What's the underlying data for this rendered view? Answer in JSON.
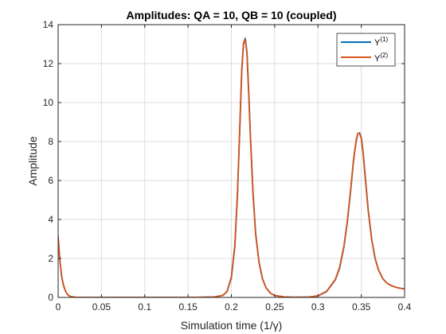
{
  "chart_data": {
    "type": "line",
    "title": "Amplitudes: QA = 10, QB = 10 (coupled)",
    "xlabel": "Simulation time (1/γ)",
    "ylabel": "Amplitude",
    "xlim": [
      0,
      0.4
    ],
    "ylim": [
      0,
      14
    ],
    "xticks": [
      0,
      0.05,
      0.1,
      0.15,
      0.2,
      0.25,
      0.3,
      0.35,
      0.4
    ],
    "xtick_labels": [
      "0",
      "0.05",
      "0.1",
      "0.15",
      "0.2",
      "0.25",
      "0.3",
      "0.35",
      "0.4"
    ],
    "yticks": [
      0,
      2,
      4,
      6,
      8,
      10,
      12,
      14
    ],
    "ytick_labels": [
      "0",
      "2",
      "4",
      "6",
      "8",
      "10",
      "12",
      "14"
    ],
    "grid": true,
    "legend_position": "top-right",
    "series": [
      {
        "name": "Y(1)",
        "legend_base": "Y",
        "legend_sup": "(1)",
        "color": "#0072BD",
        "x": [
          0,
          0.002,
          0.004,
          0.006,
          0.008,
          0.01,
          0.012,
          0.015,
          0.02,
          0.03,
          0.05,
          0.1,
          0.15,
          0.18,
          0.19,
          0.195,
          0.2,
          0.204,
          0.207,
          0.21,
          0.212,
          0.214,
          0.216,
          0.218,
          0.22,
          0.222,
          0.225,
          0.228,
          0.232,
          0.236,
          0.24,
          0.245,
          0.25,
          0.26,
          0.27,
          0.28,
          0.29,
          0.3,
          0.31,
          0.32,
          0.325,
          0.33,
          0.334,
          0.338,
          0.341,
          0.344,
          0.346,
          0.348,
          0.35,
          0.352,
          0.355,
          0.358,
          0.362,
          0.366,
          0.37,
          0.375,
          0.38,
          0.385,
          0.39,
          0.395,
          0.4
        ],
        "y": [
          3.1,
          1.9,
          1.1,
          0.65,
          0.38,
          0.2,
          0.1,
          0.04,
          0.01,
          0.0,
          0.0,
          0.0,
          0.0,
          0.02,
          0.1,
          0.3,
          1.0,
          2.6,
          5.2,
          9.0,
          11.6,
          13.0,
          13.3,
          12.6,
          10.6,
          8.3,
          5.4,
          3.3,
          1.8,
          0.95,
          0.5,
          0.22,
          0.1,
          0.03,
          0.01,
          0.01,
          0.02,
          0.08,
          0.3,
          0.9,
          1.5,
          2.6,
          3.9,
          5.6,
          7.0,
          8.0,
          8.4,
          8.45,
          8.2,
          7.5,
          6.0,
          4.5,
          3.0,
          2.0,
          1.4,
          0.95,
          0.72,
          0.6,
          0.52,
          0.47,
          0.44
        ]
      },
      {
        "name": "Y(2)",
        "legend_base": "Y",
        "legend_sup": "(2)",
        "color": "#D95319",
        "x": [
          0,
          0.002,
          0.004,
          0.006,
          0.008,
          0.01,
          0.012,
          0.015,
          0.02,
          0.03,
          0.05,
          0.1,
          0.15,
          0.18,
          0.19,
          0.195,
          0.2,
          0.204,
          0.207,
          0.21,
          0.212,
          0.214,
          0.216,
          0.218,
          0.22,
          0.222,
          0.225,
          0.228,
          0.232,
          0.236,
          0.24,
          0.245,
          0.25,
          0.26,
          0.27,
          0.28,
          0.29,
          0.3,
          0.31,
          0.32,
          0.325,
          0.33,
          0.334,
          0.338,
          0.341,
          0.344,
          0.346,
          0.348,
          0.35,
          0.352,
          0.355,
          0.358,
          0.362,
          0.366,
          0.37,
          0.375,
          0.38,
          0.385,
          0.39,
          0.395,
          0.4
        ],
        "y": [
          3.15,
          1.9,
          1.1,
          0.65,
          0.38,
          0.2,
          0.1,
          0.04,
          0.01,
          0.0,
          0.0,
          0.0,
          0.0,
          0.02,
          0.1,
          0.3,
          1.05,
          2.7,
          5.3,
          9.1,
          11.7,
          13.05,
          13.25,
          12.5,
          10.5,
          8.2,
          5.3,
          3.25,
          1.78,
          0.94,
          0.5,
          0.22,
          0.1,
          0.03,
          0.01,
          0.01,
          0.02,
          0.08,
          0.32,
          0.92,
          1.55,
          2.65,
          3.95,
          5.65,
          7.05,
          8.05,
          8.42,
          8.43,
          8.15,
          7.42,
          5.92,
          4.45,
          2.97,
          1.98,
          1.39,
          0.95,
          0.72,
          0.6,
          0.52,
          0.47,
          0.44
        ]
      }
    ]
  }
}
